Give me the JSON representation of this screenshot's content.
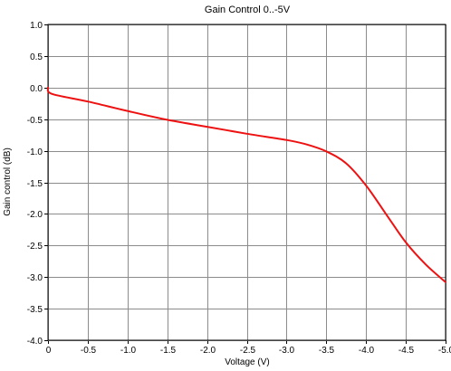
{
  "chart_data": {
    "type": "line",
    "title": "Gain Control 0..-5V",
    "xlabel": "Voltage (V)",
    "ylabel": "Gain control (dB)",
    "xlim": [
      0,
      -5.0
    ],
    "ylim": [
      -4.0,
      1.0
    ],
    "grid": true,
    "x_ticks": [
      0,
      -0.5,
      -1.0,
      -1.5,
      -2.0,
      -2.5,
      -3.0,
      -3.5,
      -4.0,
      -4.5,
      -5.0
    ],
    "x_tick_labels": [
      "0",
      "-0.5",
      "-1.0",
      "-1.5",
      "-2.0",
      "-2.5",
      "-3.0",
      "-3.5",
      "-4.0",
      "-4.5",
      "-5.0"
    ],
    "y_ticks": [
      1.0,
      0.5,
      0.0,
      -0.5,
      -1.0,
      -1.5,
      -2.0,
      -2.5,
      -3.0,
      -3.5,
      -4.0
    ],
    "y_tick_labels": [
      "1.0",
      "0.5",
      "0.0",
      "-0.5",
      "-1.0",
      "-1.5",
      "-2.0",
      "-2.5",
      "-3.0",
      "-3.5",
      "-4.0"
    ],
    "series": [
      {
        "color": "#ee1111",
        "x": [
          0,
          -0.05,
          -0.5,
          -1.0,
          -1.5,
          -2.0,
          -2.5,
          -3.0,
          -3.25,
          -3.5,
          -3.75,
          -4.0,
          -4.25,
          -4.5,
          -4.75,
          -5.0
        ],
        "y": [
          0.0,
          -0.1,
          -0.22,
          -0.37,
          -0.51,
          -0.62,
          -0.73,
          -0.83,
          -0.9,
          -1.01,
          -1.2,
          -1.55,
          -2.0,
          -2.45,
          -2.8,
          -3.08
        ]
      }
    ]
  }
}
